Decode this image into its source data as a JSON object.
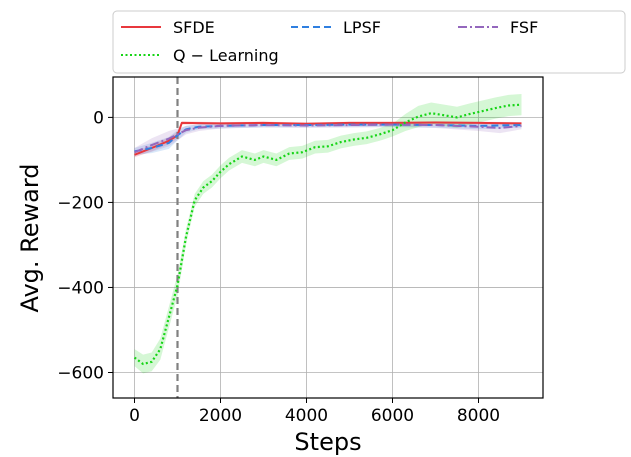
{
  "chart_data": {
    "type": "line",
    "xlabel": "Steps",
    "ylabel": "Avg. Reward",
    "xlim": [
      -500,
      9500
    ],
    "ylim": [
      -660,
      95
    ],
    "xticks": [
      0,
      2000,
      4000,
      6000,
      8000
    ],
    "xtick_labels": [
      "0",
      "2000",
      "4000",
      "6000",
      "8000"
    ],
    "yticks": [
      0,
      -200,
      -400,
      -600
    ],
    "ytick_labels": [
      "0",
      "−200",
      "−400",
      "−600"
    ],
    "grid": true,
    "legend": {
      "placement": "top, outside plot",
      "columns": 3
    },
    "vertical_line": {
      "x": 1000,
      "style": "dashed",
      "color": "#808080"
    },
    "series": [
      {
        "name": "SFDE",
        "color": "#e8383d",
        "style": "solid",
        "x": [
          0,
          400,
          800,
          1000,
          1100,
          2000,
          3000,
          4000,
          5000,
          6000,
          7000,
          8000,
          9000
        ],
        "y": [
          -88,
          -72,
          -55,
          -42,
          -13,
          -14,
          -13,
          -15,
          -13,
          -13,
          -12,
          -13,
          -14
        ],
        "band": [
          6,
          8,
          8,
          8,
          4,
          3,
          3,
          3,
          3,
          3,
          3,
          3,
          3
        ]
      },
      {
        "name": "LPSF",
        "color": "#2f7fe0",
        "style": "dashed",
        "x": [
          0,
          400,
          800,
          1000,
          1200,
          1500,
          2000,
          3000,
          4000,
          5000,
          6000,
          7000,
          8000,
          9000
        ],
        "y": [
          -80,
          -72,
          -60,
          -42,
          -28,
          -22,
          -20,
          -18,
          -18,
          -17,
          -17,
          -18,
          -20,
          -18
        ],
        "band": [
          8,
          12,
          14,
          12,
          8,
          6,
          6,
          5,
          5,
          5,
          5,
          6,
          8,
          6
        ]
      },
      {
        "name": "FSF",
        "color": "#9467bd",
        "style": "dashdot",
        "x": [
          0,
          400,
          800,
          1000,
          1200,
          1500,
          2000,
          3000,
          4000,
          5000,
          6000,
          7000,
          8000,
          8500,
          9000
        ],
        "y": [
          -82,
          -65,
          -50,
          -40,
          -30,
          -24,
          -20,
          -18,
          -19,
          -18,
          -17,
          -18,
          -22,
          -25,
          -20
        ],
        "band": [
          10,
          16,
          18,
          14,
          10,
          8,
          6,
          6,
          6,
          6,
          6,
          7,
          10,
          12,
          8
        ]
      },
      {
        "name": "Q − Learning",
        "color": "#16d416",
        "style": "dotted",
        "x": [
          0,
          200,
          400,
          600,
          800,
          1000,
          1200,
          1400,
          1600,
          1800,
          2000,
          2200,
          2500,
          2800,
          3000,
          3300,
          3600,
          3900,
          4200,
          4500,
          4800,
          5100,
          5400,
          5700,
          6000,
          6300,
          6600,
          6900,
          7200,
          7500,
          7800,
          8100,
          8400,
          8700,
          9000
        ],
        "y": [
          -565,
          -580,
          -575,
          -545,
          -470,
          -395,
          -280,
          -195,
          -165,
          -150,
          -128,
          -110,
          -92,
          -100,
          -92,
          -100,
          -85,
          -82,
          -70,
          -68,
          -58,
          -52,
          -48,
          -40,
          -30,
          -12,
          2,
          10,
          5,
          0,
          8,
          15,
          22,
          28,
          30
        ],
        "band": [
          20,
          22,
          22,
          25,
          25,
          25,
          18,
          15,
          15,
          15,
          15,
          15,
          15,
          15,
          15,
          15,
          15,
          15,
          15,
          15,
          15,
          15,
          15,
          15,
          15,
          20,
          25,
          25,
          25,
          25,
          25,
          25,
          25,
          25,
          25
        ]
      }
    ]
  }
}
